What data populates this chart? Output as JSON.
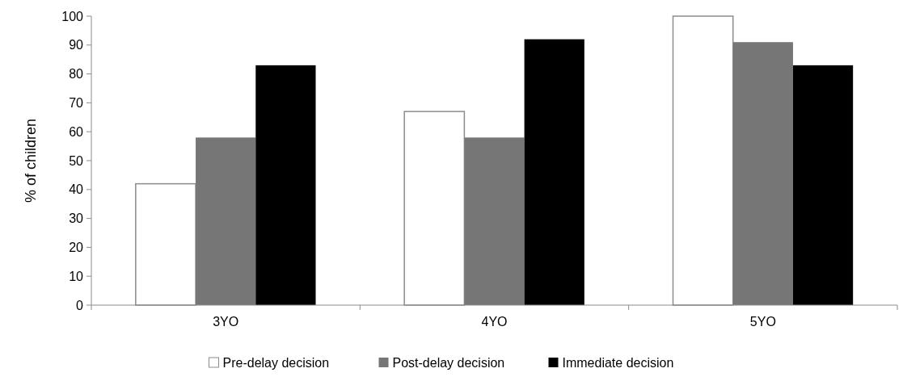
{
  "chart_data": {
    "type": "bar",
    "ylabel": "% of children",
    "categories": [
      "3YO",
      "4YO",
      "5YO"
    ],
    "series": [
      {
        "name": "Pre-delay decision",
        "color": "#ffffff",
        "values": [
          42,
          67,
          100
        ]
      },
      {
        "name": "Post-delay decision",
        "color": "#767676",
        "values": [
          58,
          58,
          91
        ]
      },
      {
        "name": "Immediate decision",
        "color": "#000000",
        "values": [
          83,
          92,
          83
        ]
      }
    ],
    "ylim": [
      0,
      100
    ],
    "yticks": [
      0,
      10,
      20,
      30,
      40,
      50,
      60,
      70,
      80,
      90,
      100
    ],
    "grid": false,
    "legend": "bottom"
  }
}
